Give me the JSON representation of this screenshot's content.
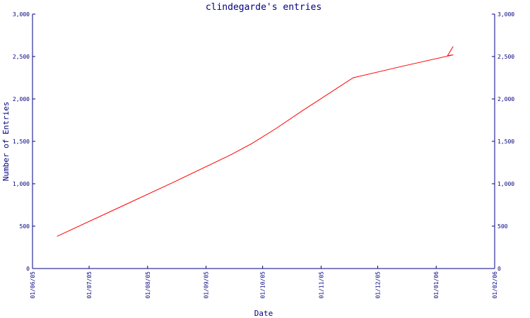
{
  "chart_data": {
    "type": "line",
    "title": "clindegarde's entries",
    "xlabel": "Date",
    "ylabel": "Number of Entries",
    "x_ticks": [
      "01/06/05",
      "01/07/05",
      "01/08/05",
      "01/09/05",
      "01/10/05",
      "01/11/05",
      "01/12/05",
      "01/01/06",
      "01/02/06"
    ],
    "y_ticks": [
      "0",
      "500",
      "1,000",
      "1,500",
      "2,000",
      "2,500",
      "3,000"
    ],
    "ylim": [
      0,
      3000
    ],
    "xlim": [
      "2005-06-01",
      "2006-02-01"
    ],
    "grid": false,
    "y_axis_mirrored_right": true,
    "series": [
      {
        "color": "#ff0000",
        "points": [
          {
            "x": "2005-06-14",
            "y": 380
          },
          {
            "x": "2005-07-15",
            "y": 700
          },
          {
            "x": "2005-08-15",
            "y": 1020
          },
          {
            "x": "2005-09-14",
            "y": 1340
          },
          {
            "x": "2005-09-25",
            "y": 1470
          },
          {
            "x": "2005-10-08",
            "y": 1650
          },
          {
            "x": "2005-10-22",
            "y": 1860
          },
          {
            "x": "2005-11-18",
            "y": 2250
          },
          {
            "x": "2005-12-15",
            "y": 2390
          },
          {
            "x": "2006-01-10",
            "y": 2520
          },
          {
            "x": "2006-01-07",
            "y": 2510
          },
          {
            "x": "2006-01-10",
            "y": 2620
          }
        ]
      }
    ]
  }
}
